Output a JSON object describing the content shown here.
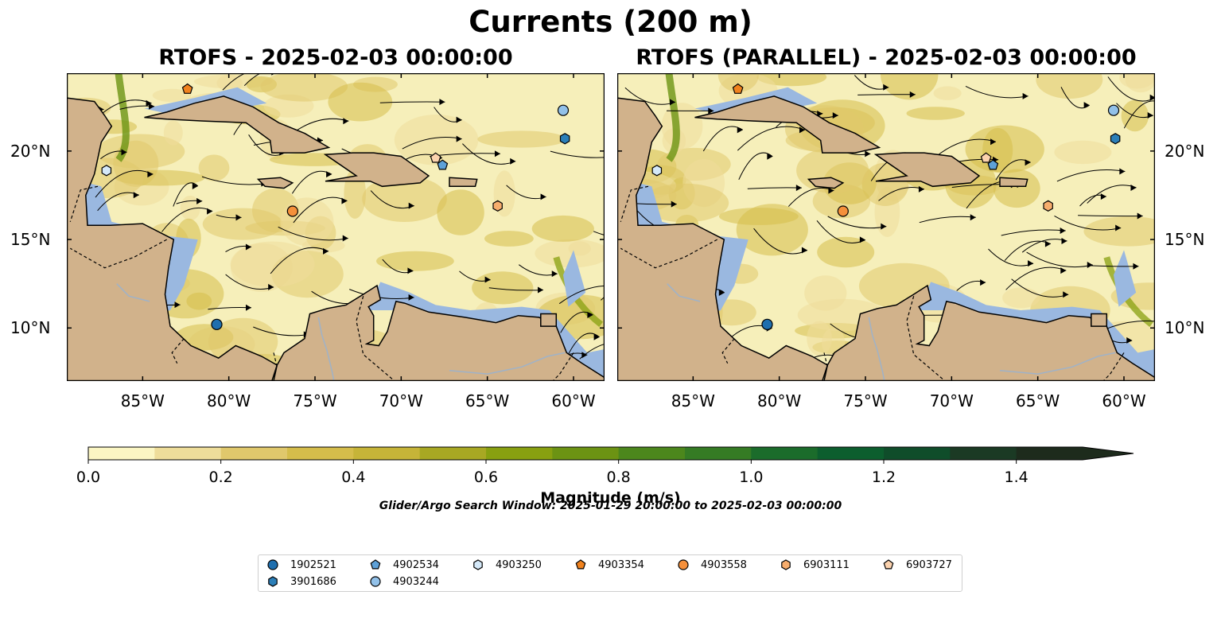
{
  "title": "Currents (200 m)",
  "panels": [
    {
      "title": "RTOFS - 2025-02-03 00:00:00"
    },
    {
      "title": "RTOFS (PARALLEL) - 2025-02-03 00:00:00"
    }
  ],
  "map": {
    "lon_range": [
      -89.4,
      -58.2
    ],
    "lat_range": [
      7.0,
      24.4
    ],
    "lat_labels": [
      "20°N",
      "15°N",
      "10°N"
    ],
    "lat_values": [
      20,
      15,
      10
    ],
    "lon_labels": [
      "85°W",
      "80°W",
      "75°W",
      "70°W",
      "65°W",
      "60°W"
    ],
    "lon_values": [
      -85,
      -80,
      -75,
      -70,
      -65,
      -60
    ],
    "colors": {
      "ocean_fill": "#f6efba",
      "land": "#d1b28b",
      "shelf": "#9ab8e0",
      "coastline": "#000000"
    }
  },
  "colorbar": {
    "label": "Magnitude (m/s)",
    "ticks": [
      "0.0",
      "0.2",
      "0.4",
      "0.6",
      "0.8",
      "1.0",
      "1.2",
      "1.4"
    ],
    "tick_values": [
      0.0,
      0.2,
      0.4,
      0.6,
      0.8,
      1.0,
      1.2,
      1.4
    ],
    "range": [
      0.0,
      1.5
    ],
    "colors": [
      "#fbf6c3",
      "#eedd9a",
      "#e0c86c",
      "#d5bd4b",
      "#c6b438",
      "#a8a823",
      "#88a010",
      "#6c9313",
      "#4c871c",
      "#357b24",
      "#1b6c2b",
      "#0c5e2e",
      "#0f4d2a",
      "#1b3a24",
      "#1d2b1c"
    ]
  },
  "search_window": "Glider/Argo Search Window: 2025-01-29 20:00:00 to 2025-02-03 00:00:00",
  "platforms": [
    {
      "id": "1902521",
      "marker": "circle",
      "color": "#1f6fae",
      "lon": -80.7,
      "lat": 10.2
    },
    {
      "id": "3901686",
      "marker": "hexagon",
      "color": "#2c7fb8",
      "lon": -60.5,
      "lat": 20.7
    },
    {
      "id": "4902534",
      "marker": "pentagon",
      "color": "#5ea1d8",
      "lon": -67.6,
      "lat": 19.2
    },
    {
      "id": "4903244",
      "marker": "circle",
      "color": "#92c1e9",
      "lon": -60.6,
      "lat": 22.3
    },
    {
      "id": "4903250",
      "marker": "hexagon",
      "color": "#d4e8f8",
      "lon": -87.1,
      "lat": 18.9
    },
    {
      "id": "4903354",
      "marker": "pentagon",
      "color": "#f0821e",
      "lon": -82.4,
      "lat": 23.5
    },
    {
      "id": "4903558",
      "marker": "circle",
      "color": "#f5903b",
      "lon": -76.3,
      "lat": 16.6
    },
    {
      "id": "6903111",
      "marker": "hexagon",
      "color": "#f7ad6d",
      "lon": -64.4,
      "lat": 16.9
    },
    {
      "id": "6903727",
      "marker": "pentagon",
      "color": "#fbd2ae",
      "lon": -68.0,
      "lat": 19.6
    }
  ]
}
